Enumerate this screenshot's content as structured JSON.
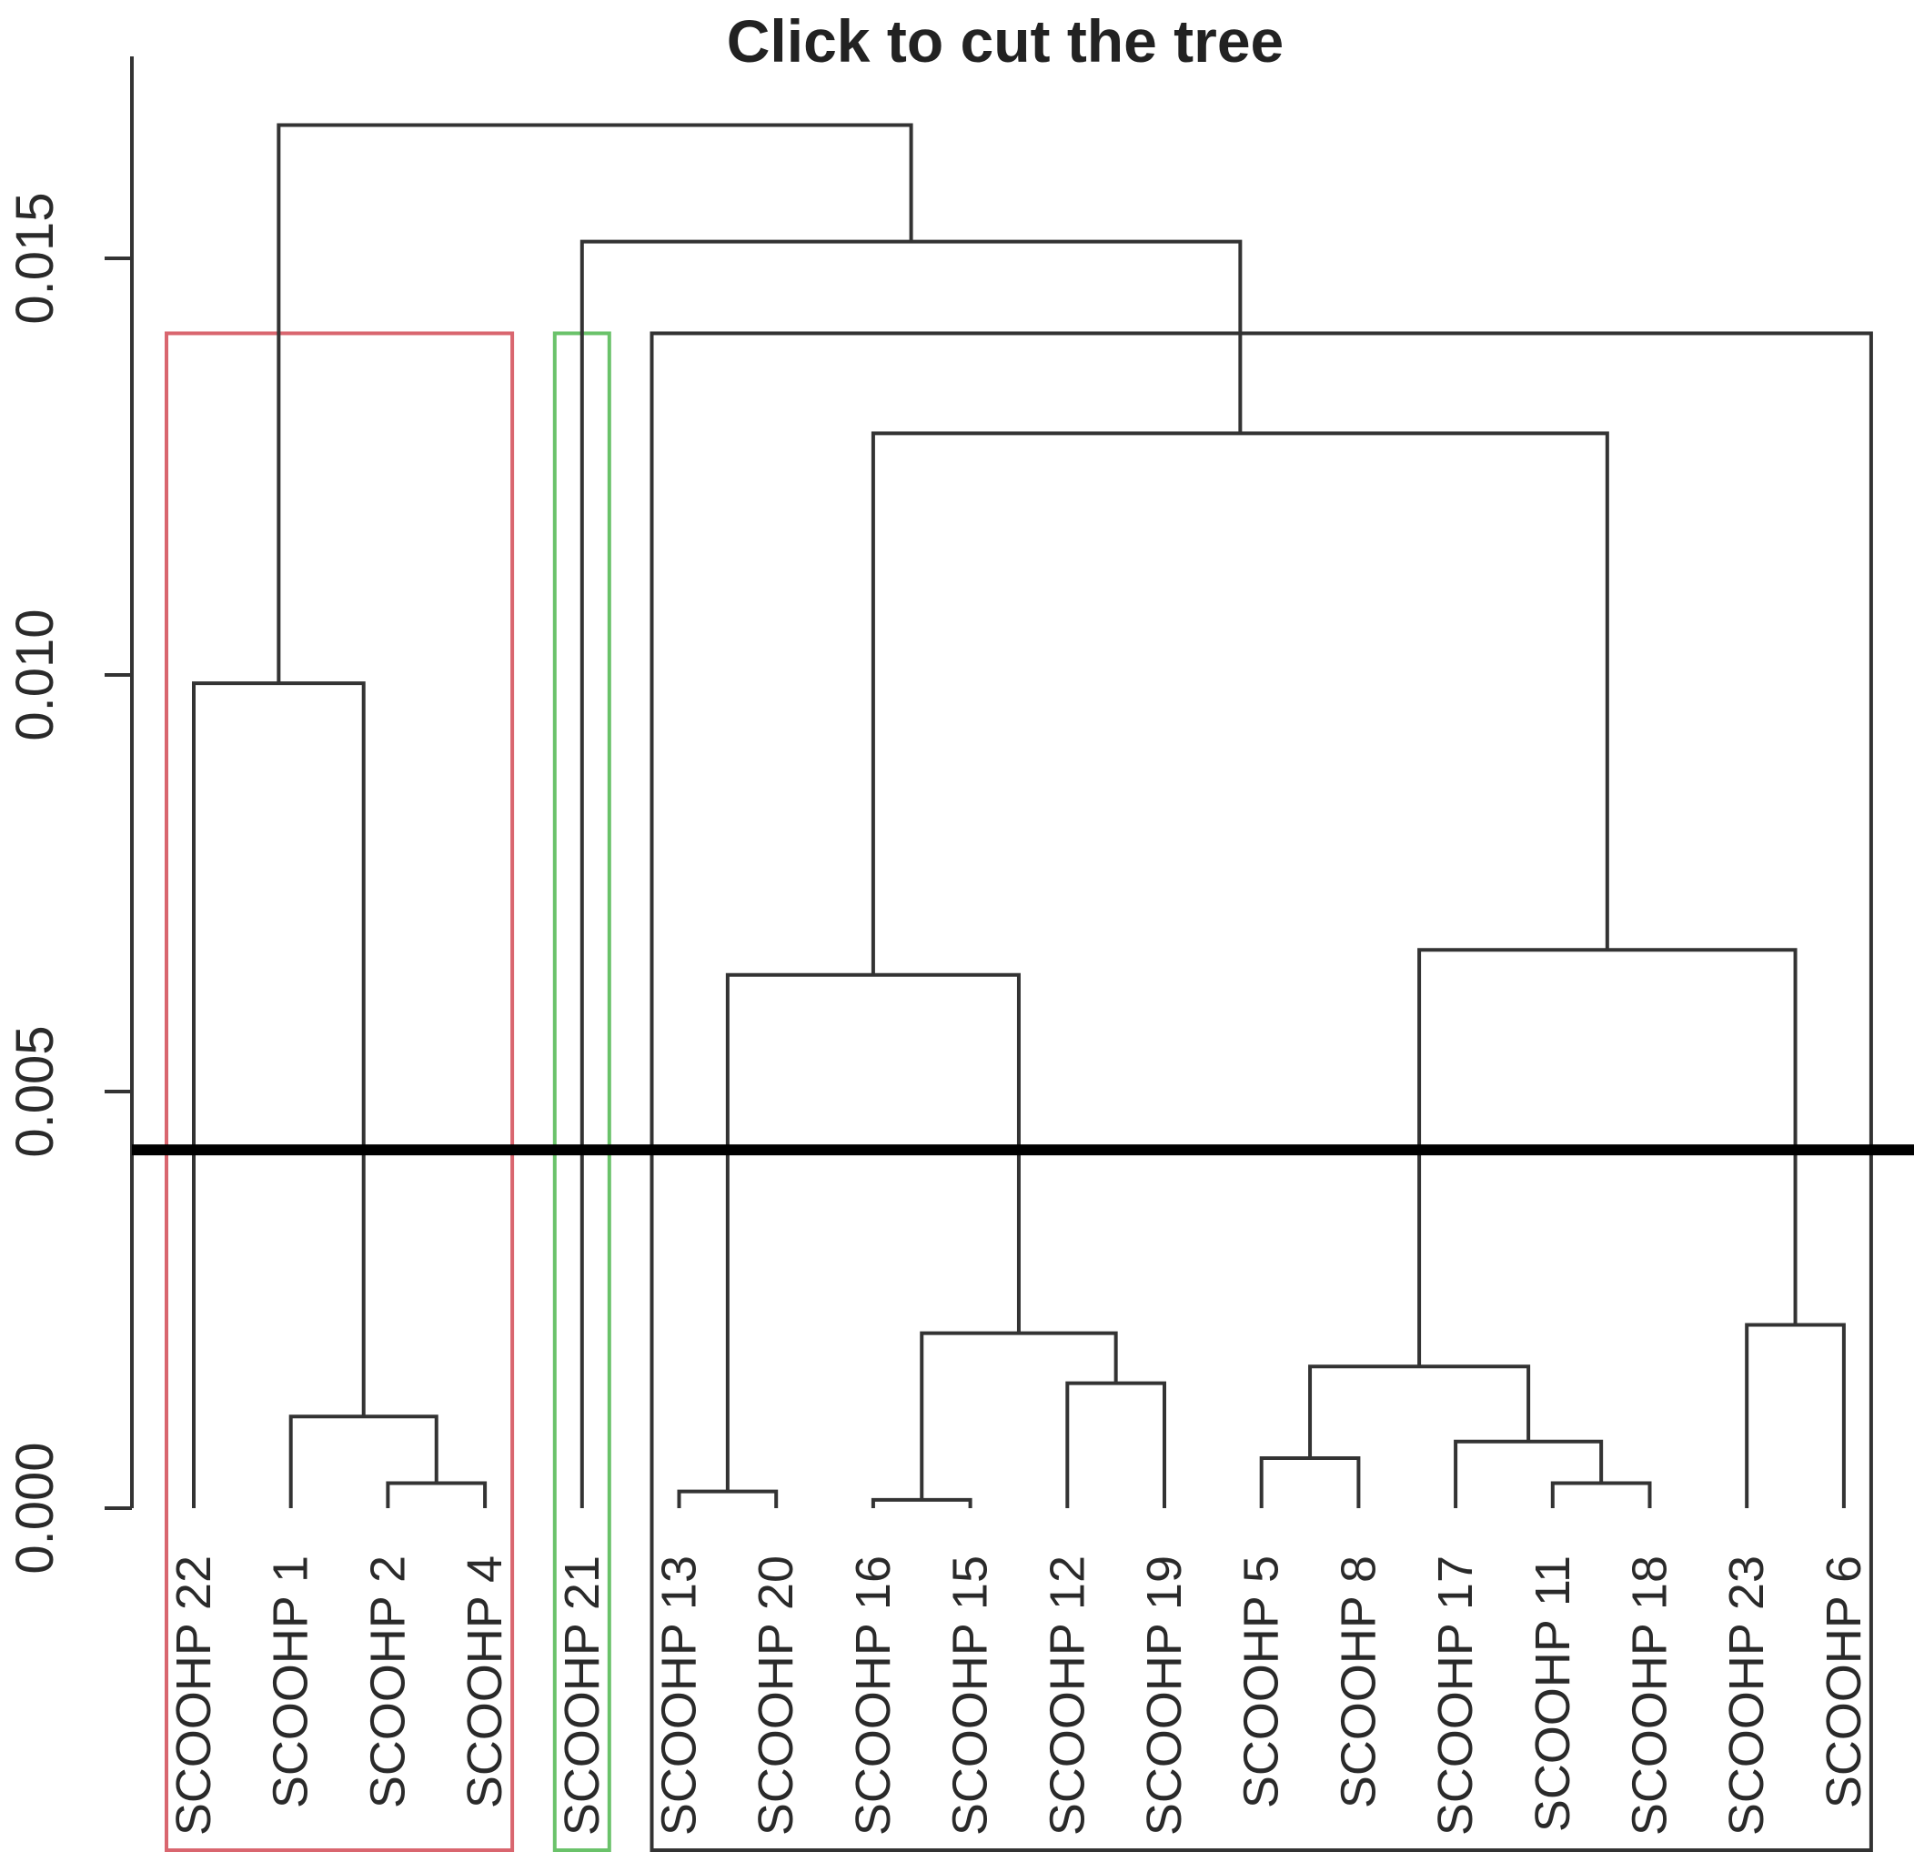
{
  "chart_data": {
    "type": "dendrogram",
    "title": "Click to cut the tree",
    "xlabel": "",
    "ylabel": "",
    "ylim": [
      0,
      0.018
    ],
    "yticks": [
      "0.000",
      "0.005",
      "0.010",
      "0.015"
    ],
    "yticks_values": [
      0.0,
      0.005,
      0.01,
      0.015
    ],
    "cut_height": 0.0043,
    "leaves": [
      "SCOOHP 22",
      "SCOOHP 1",
      "SCOOHP 2",
      "SCOOHP 4",
      "SCOOHP 21",
      "SCOOHP 13",
      "SCOOHP 20",
      "SCOOHP 16",
      "SCOOHP 15",
      "SCOOHP 12",
      "SCOOHP 19",
      "SCOOHP 5",
      "SCOOHP 8",
      "SCOOHP 17",
      "SCOOHP 11",
      "SCOOHP 18",
      "SCOOHP 23",
      "SCOOHP 6"
    ],
    "merges": [
      {
        "id": "m_2_4",
        "left": "SCOOHP 2",
        "right": "SCOOHP 4",
        "height": 0.0003
      },
      {
        "id": "m_1_2_4",
        "left": "SCOOHP 1",
        "right": "m_2_4",
        "height": 0.0011
      },
      {
        "id": "m_22_1_2_4",
        "left": "SCOOHP 22",
        "right": "m_1_2_4",
        "height": 0.0099
      },
      {
        "id": "m_13_20",
        "left": "SCOOHP 13",
        "right": "SCOOHP 20",
        "height": 0.0002
      },
      {
        "id": "m_16_15",
        "left": "SCOOHP 16",
        "right": "SCOOHP 15",
        "height": 0.0001
      },
      {
        "id": "m_12_19",
        "left": "SCOOHP 12",
        "right": "SCOOHP 19",
        "height": 0.0015
      },
      {
        "id": "m_16_15_12_19",
        "left": "m_16_15",
        "right": "m_12_19",
        "height": 0.0021
      },
      {
        "id": "m_13_20_16_15_12_19",
        "left": "m_13_20",
        "right": "m_16_15_12_19",
        "height": 0.0064
      },
      {
        "id": "m_5_8",
        "left": "SCOOHP 5",
        "right": "SCOOHP 8",
        "height": 0.0006
      },
      {
        "id": "m_11_18",
        "left": "SCOOHP 11",
        "right": "SCOOHP 18",
        "height": 0.0003
      },
      {
        "id": "m_17_11_18",
        "left": "SCOOHP 17",
        "right": "m_11_18",
        "height": 0.0008
      },
      {
        "id": "m_5_8_17_11_18",
        "left": "m_5_8",
        "right": "m_17_11_18",
        "height": 0.0017
      },
      {
        "id": "m_23_6",
        "left": "SCOOHP 23",
        "right": "SCOOHP 6",
        "height": 0.0022
      },
      {
        "id": "m_5_8_17_11_18_23_6",
        "left": "m_5_8_17_11_18",
        "right": "m_23_6",
        "height": 0.0067
      },
      {
        "id": "m_right_block",
        "left": "m_13_20_16_15_12_19",
        "right": "m_5_8_17_11_18_23_6",
        "height": 0.0129
      },
      {
        "id": "m_21_right_block",
        "left": "SCOOHP 21",
        "right": "m_right_block",
        "height": 0.0152
      },
      {
        "id": "m_root",
        "left": "m_22_1_2_4",
        "right": "m_21_right_block",
        "height": 0.0166
      }
    ],
    "highlight_boxes": [
      {
        "name": "cluster-box-1",
        "color": "#d9666f",
        "first_leaf": "SCOOHP 22",
        "last_leaf": "SCOOHP 4",
        "top_height": 0.0141
      },
      {
        "name": "cluster-box-2",
        "color": "#6ac26a",
        "first_leaf": "SCOOHP 21",
        "last_leaf": "SCOOHP 21",
        "top_height": 0.0141
      },
      {
        "name": "cluster-box-3",
        "color": "#333333",
        "first_leaf": "SCOOHP 13",
        "last_leaf": "SCOOHP 6",
        "top_height": 0.0141
      }
    ],
    "colors": {
      "branch": "#333333",
      "cut_line": "#000000",
      "text": "#2a2a2a",
      "background": "#ffffff"
    }
  }
}
